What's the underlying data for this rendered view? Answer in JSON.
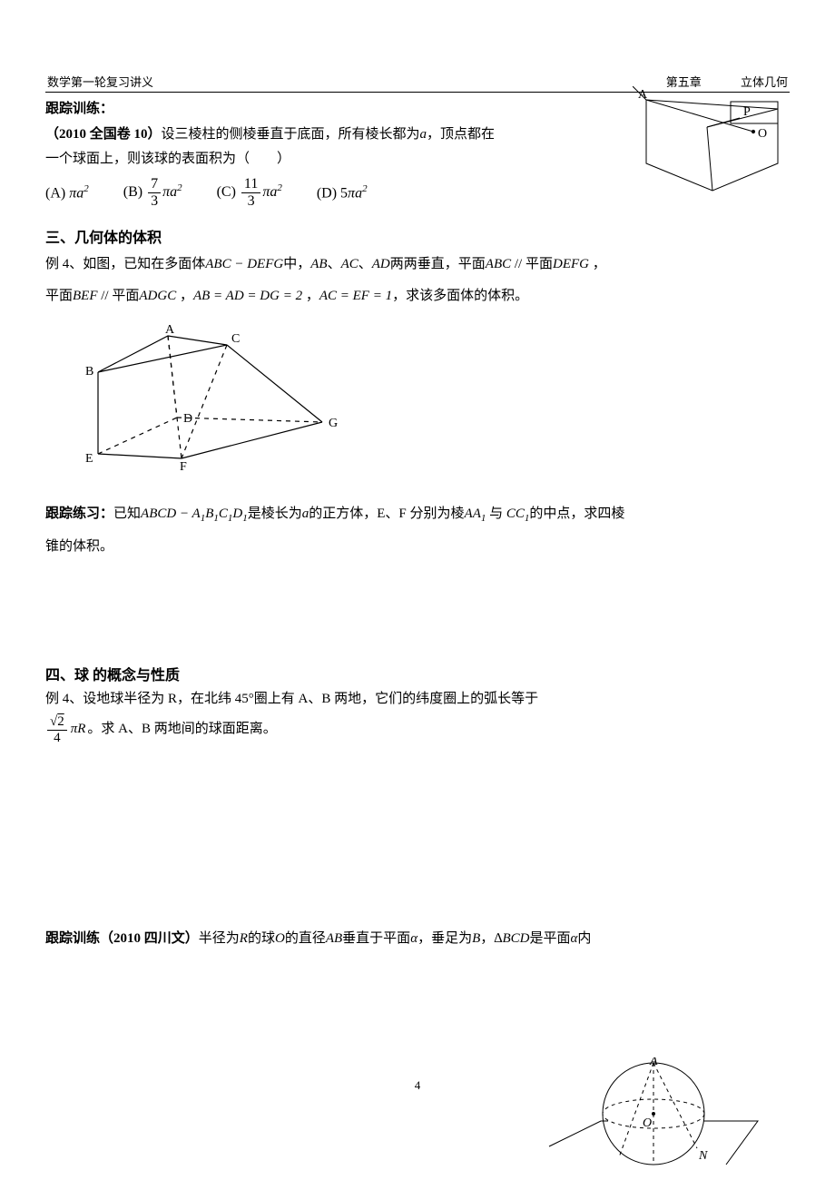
{
  "header": {
    "left": "数学第一轮复习讲义",
    "center": "第五章",
    "right": "立体几何"
  },
  "sec1": {
    "title": "跟踪训练：",
    "problem_src": "（2010 全国卷 10）",
    "problem_text_1": "设三棱柱的侧棱垂直于底面，所有棱长都为",
    "problem_text_2": "，顶点都在",
    "problem_text_3": "一个球面上，则该球的表面积为（　　）",
    "var_a": "a",
    "options": {
      "A": "(A)",
      "B": "(B)",
      "C": "(C)",
      "D": "(D)"
    },
    "opt_vals": {
      "A_expr": "πa",
      "B_num": "7",
      "B_den": "3",
      "C_num": "11",
      "C_den": "3",
      "pi_a2": "πa",
      "D_pref": "5",
      "sq": "2"
    },
    "prism": {
      "label_A": "A",
      "label_P": "P",
      "label_O": "O",
      "stroke": "#000000"
    }
  },
  "sec2": {
    "title": "三、几何体的体积",
    "ex4_pref": "例 4、如图，已知在多面体",
    "polyname": "ABC − DEFG",
    "ex4_mid1": "中，",
    "seg_AB": "AB",
    "seg_AC": "AC",
    "seg_AD": "AD",
    "ex4_mid2": "两两垂直，平面",
    "plane_ABC": "ABC",
    "parallel": " // ",
    "ex4_mid3": "平面",
    "plane_DEFG": "DEFG",
    "ex4_line2a": "平面",
    "plane_BEF": "BEF",
    "plane_ADGC": "ADGC",
    "eq1": "AB = AD = DG = 2",
    "eq2": "AC = EF = 1",
    "ex4_tail": "，求该多面体的体积。",
    "labels": {
      "A": "A",
      "B": "B",
      "C": "C",
      "D": "D",
      "E": "E",
      "F": "F",
      "G": "G"
    }
  },
  "sec3": {
    "title": "跟踪练习：",
    "t1": "已知",
    "cube": "ABCD − A",
    "cube_sub1": "1",
    "cube2": "B",
    "cube3": "C",
    "cube4": "D",
    "t2": "是棱长为",
    "var_a": "a",
    "t3": "的正方体，E、F 分别为棱",
    "AA": "AA",
    "CC": "CC",
    "t4": "的中点，求四棱",
    "t5": "锥的体积。"
  },
  "sec4": {
    "title": "四、球 的概念与性质",
    "ex4": "例 4、设地球半径为 R，在北纬 45°圈上有 A、B 两地，它们的纬度圈上的弧长等于",
    "frac_num": "√2",
    "frac_den": "4",
    "piR": "πR",
    "tail": "。求 A、B 两地间的球面距离。"
  },
  "sec5": {
    "title": "跟踪训练",
    "src": "（2010 四川文）",
    "t1": "半径为",
    "R": "R",
    "t2": "的球",
    "O": "O",
    "t3": "的直径",
    "AB": "AB",
    "t4": "垂直于平面",
    "alpha": "α",
    "t5": "，垂足为",
    "B": "B",
    "t6": "，",
    "tri": "∆BCD",
    "t7": "是平面",
    "t8": "内",
    "labels": {
      "A": "A",
      "O": "O",
      "N": "N"
    }
  },
  "page_number": "4",
  "colors": {
    "text": "#000000",
    "bg": "#ffffff"
  }
}
